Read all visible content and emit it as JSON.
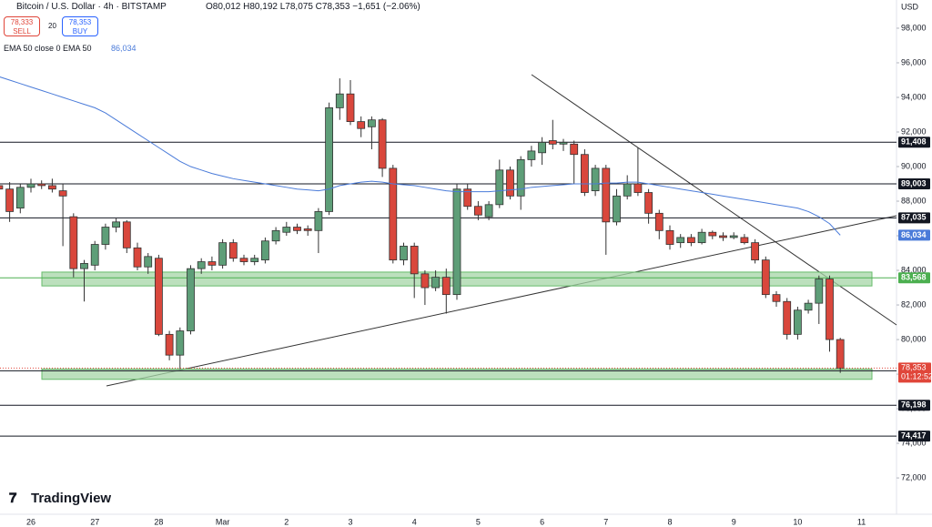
{
  "chart_data": {
    "type": "candlestick",
    "title": "Bitcoin / U.S. Dollar · 4h · BITSTAMP",
    "ohlc_summary": "O80,012 H80,192 L78,075 C78,353 −1,651 (−2.06%)",
    "sell": {
      "price": "78,333",
      "label": "SELL"
    },
    "spread": "20",
    "buy": {
      "price": "78,353",
      "label": "BUY"
    },
    "indicator": "EMA 50 close 0 EMA 50",
    "indicator_value": "86,034",
    "currency": "USD",
    "brand": "TradingView",
    "categories": [
      null,
      null,
      null,
      "26",
      null,
      null,
      null,
      null,
      null,
      "27",
      null,
      null,
      null,
      null,
      null,
      "28",
      null,
      null,
      null,
      null,
      null,
      "Mar",
      null,
      null,
      null,
      null,
      null,
      "2",
      null,
      null,
      null,
      null,
      null,
      "3",
      null,
      null,
      null,
      null,
      null,
      "4",
      null,
      null,
      null,
      null,
      null,
      "5",
      null,
      null,
      null,
      null,
      null,
      "6",
      null,
      null,
      null,
      null,
      null,
      "7",
      null,
      null,
      null,
      null,
      null,
      "8",
      null,
      null,
      null,
      null,
      null,
      "9",
      null,
      null,
      null,
      null,
      null,
      "10",
      null,
      null,
      null,
      null,
      null,
      "11"
    ],
    "open": [
      88900,
      88700,
      87600,
      88800,
      89000,
      88900,
      88600,
      87100,
      84100,
      84300,
      85500,
      86500,
      86800,
      85300,
      84200,
      84700,
      80300,
      79100,
      80500,
      84100,
      84500,
      84300,
      85600,
      84700,
      84500,
      84600,
      85700,
      86200,
      86500,
      86400,
      86300,
      87400,
      93400,
      94200,
      92600,
      92300,
      92700,
      89900,
      84600,
      85400,
      83800,
      83000,
      83600,
      82600,
      88700,
      87700,
      87100,
      87800,
      89800,
      88300,
      90400,
      90800,
      91500,
      91300,
      91300,
      90700,
      88600,
      89900,
      86800,
      88300,
      89000,
      88500,
      87300,
      86300,
      85600,
      85900,
      85600,
      86200,
      86000,
      85900,
      85900,
      85600,
      84600,
      82600,
      82200,
      80300,
      81700,
      82100,
      83500,
      80000,
      null,
      null
    ],
    "high": [
      89200,
      89100,
      89000,
      89300,
      89200,
      89300,
      89000,
      87300,
      84600,
      85700,
      86700,
      87000,
      86900,
      85600,
      85000,
      84900,
      80500,
      80700,
      84300,
      84700,
      84800,
      85800,
      85800,
      84900,
      84900,
      85900,
      86500,
      86800,
      86700,
      86600,
      87600,
      93700,
      95100,
      95000,
      92900,
      92900,
      92800,
      90100,
      85600,
      85600,
      84000,
      84000,
      84100,
      89000,
      89000,
      88000,
      88000,
      90400,
      90000,
      90600,
      91200,
      91700,
      92700,
      91600,
      91500,
      91000,
      90100,
      90100,
      88700,
      89500,
      91100,
      88700,
      87500,
      86600,
      86100,
      86100,
      86400,
      86300,
      86200,
      86200,
      86100,
      85800,
      84800,
      82800,
      82400,
      81900,
      82300,
      83700,
      83700,
      80100,
      null,
      null
    ],
    "low": [
      88400,
      86800,
      87300,
      88500,
      88700,
      88500,
      85400,
      83600,
      82200,
      84000,
      85200,
      86200,
      85000,
      84000,
      83800,
      80200,
      78800,
      78300,
      80300,
      83800,
      84000,
      84100,
      84500,
      84300,
      84300,
      84400,
      85500,
      86000,
      86100,
      86000,
      85000,
      87200,
      92700,
      92400,
      91700,
      91000,
      89400,
      84400,
      84300,
      82400,
      82000,
      82800,
      81500,
      82300,
      87500,
      86900,
      86900,
      87600,
      88100,
      87500,
      90000,
      90100,
      91000,
      90900,
      89000,
      88300,
      88300,
      84900,
      86600,
      88100,
      88300,
      86700,
      85800,
      85200,
      85300,
      85400,
      85500,
      85800,
      85700,
      85800,
      85500,
      84400,
      82400,
      81900,
      80000,
      80000,
      81500,
      80900,
      79300,
      78075,
      null,
      null
    ],
    "close": [
      88700,
      87400,
      88800,
      89000,
      88900,
      88700,
      88300,
      84100,
      84400,
      85500,
      86500,
      86800,
      85300,
      84200,
      84800,
      80300,
      79100,
      80500,
      84100,
      84500,
      84300,
      85600,
      84700,
      84500,
      84700,
      85700,
      86300,
      86500,
      86300,
      86300,
      87400,
      93400,
      94200,
      92600,
      92200,
      92700,
      89900,
      84600,
      85400,
      83800,
      83000,
      83600,
      82600,
      88700,
      87700,
      87200,
      87800,
      89800,
      88300,
      90400,
      90900,
      91400,
      91300,
      91400,
      90700,
      88500,
      89900,
      86800,
      88300,
      89000,
      88500,
      87300,
      86300,
      85500,
      85900,
      85600,
      86200,
      86000,
      85900,
      86000,
      85600,
      84600,
      82600,
      82200,
      80300,
      81700,
      82100,
      83500,
      80000,
      78353,
      null,
      null
    ],
    "up_color": "#5e9e78",
    "down_color": "#d9473c",
    "ema": {
      "color": "#4a7bd9",
      "values": [
        95200,
        95000,
        94800,
        94600,
        94400,
        94200,
        94000,
        93800,
        93600,
        93400,
        93100,
        92700,
        92300,
        91900,
        91500,
        91100,
        90700,
        90300,
        90000,
        89800,
        89600,
        89450,
        89300,
        89200,
        89100,
        89000,
        88900,
        88800,
        88700,
        88650,
        88600,
        88700,
        88900,
        89000,
        89100,
        89150,
        89100,
        89000,
        88950,
        88900,
        88800,
        88700,
        88600,
        88550,
        88550,
        88550,
        88550,
        88600,
        88650,
        88700,
        88800,
        88850,
        88900,
        88950,
        89000,
        89000,
        89000,
        89050,
        89050,
        89100,
        89100,
        89000,
        88900,
        88800,
        88700,
        88600,
        88500,
        88400,
        88300,
        88200,
        88100,
        88000,
        87900,
        87800,
        87700,
        87600,
        87400,
        87100,
        86700,
        86034,
        null,
        null
      ]
    },
    "levels": [
      {
        "value": 91408,
        "label": "91,408",
        "color": "#131722"
      },
      {
        "value": 89003,
        "label": "89,003",
        "color": "#131722"
      },
      {
        "value": 87035,
        "label": "87,035",
        "color": "#131722"
      },
      {
        "value": 86034,
        "label": "86,034",
        "color": "#4a7bd9"
      },
      {
        "value": 83568,
        "label": "83,568",
        "color": "#4caf50"
      },
      {
        "value": 78196,
        "label": "78,196",
        "color": "#131722"
      },
      {
        "value": 76198,
        "label": "76,198",
        "color": "#131722"
      },
      {
        "value": 74417,
        "label": "74,417",
        "color": "#131722"
      }
    ],
    "zones": [
      [
        83100,
        83900
      ],
      [
        77700,
        78300
      ]
    ],
    "zone_color": "#a5d6a7",
    "last_price": {
      "value": 78353,
      "label": "78,353",
      "countdown": "01:12:52",
      "color": "#e0463a"
    },
    "ylim": [
      69900,
      99630
    ],
    "yticks": [
      {
        "value": 72000,
        "label": "72,000"
      },
      {
        "value": 74000,
        "label": "74,000"
      },
      {
        "value": 76000,
        "label": "76,000"
      },
      {
        "value": 78000,
        "label": "78,000"
      },
      {
        "value": 80000,
        "label": "80,000"
      },
      {
        "value": 82000,
        "label": "82,000"
      },
      {
        "value": 84000,
        "label": "84,000"
      },
      {
        "value": 86000,
        "label": "86,000"
      },
      {
        "value": 88000,
        "label": "88,000"
      },
      {
        "value": 90000,
        "label": "90,000"
      },
      {
        "value": 92000,
        "label": "92,000"
      },
      {
        "value": 94000,
        "label": "94,000"
      },
      {
        "value": 96000,
        "label": "96,000"
      },
      {
        "value": 98000,
        "label": "98,000"
      }
    ]
  }
}
